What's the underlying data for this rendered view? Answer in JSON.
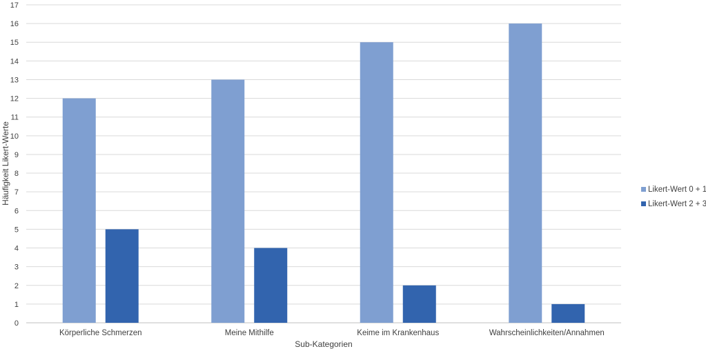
{
  "chart_data": {
    "type": "bar",
    "categories": [
      "Körperliche Schmerzen",
      "Meine Mithilfe",
      "Keime im Krankenhaus",
      "Wahrscheinlichkeiten/Annahmen"
    ],
    "series": [
      {
        "name": "Likert-Wert 0 + 1",
        "values": [
          12,
          13,
          15,
          16
        ],
        "color": "#7f9fd1"
      },
      {
        "name": "Likert-Wert 2 + 3",
        "values": [
          5,
          4,
          2,
          1
        ],
        "color": "#3264ae"
      }
    ],
    "title": "",
    "xlabel": "Sub-Kategorien",
    "ylabel": "Häufigkeit Likert-Werte",
    "ylim": [
      0,
      17
    ],
    "yticks": [
      "0",
      "1",
      "2",
      "3",
      "4",
      "5",
      "6",
      "7",
      "8",
      "9",
      "10",
      "11",
      "12",
      "13",
      "14",
      "15",
      "16",
      "17"
    ],
    "grid": true,
    "legend_position": "right"
  }
}
